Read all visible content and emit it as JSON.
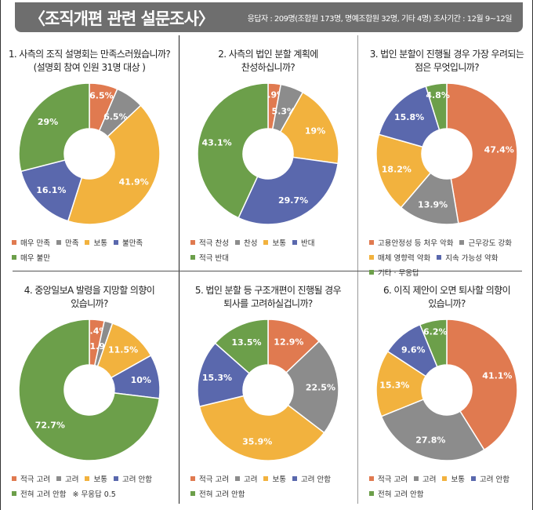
{
  "header": {
    "title": "〈조직개편 관련 설문조사〉",
    "info": "응답자 : 209명(조합원 173명, 명예조합원 32명, 기타 4명)   조사기간 : 12월 9~12일"
  },
  "colors": [
    "#e07a50",
    "#8c8c8c",
    "#f2b23e",
    "#5a68ad",
    "#6c9f4a"
  ],
  "chart_data": [
    {
      "type": "pie",
      "title": [
        "1. 사측의 조직 설명회는 만족스러웠습니까?",
        "(설명회 참여 인원 31명 대상 )"
      ],
      "categories": [
        "매우 만족",
        "만족",
        "보통",
        "불만족",
        "매우 불만"
      ],
      "values": [
        6.5,
        6.5,
        41.9,
        16.1,
        29
      ],
      "labels": [
        "6.5%",
        "6.5%",
        "41.9%",
        "16.1%",
        "29%"
      ]
    },
    {
      "type": "pie",
      "title": [
        "2. 사측의 법인 분할 계획에",
        "찬성하십니까?"
      ],
      "categories": [
        "적극 찬성",
        "찬성",
        "보통",
        "반대",
        "적극 반대"
      ],
      "values": [
        2.9,
        5.3,
        19,
        29.7,
        43.1
      ],
      "labels": [
        "2.9%",
        "5.3%",
        "19%",
        "29.7%",
        "43.1%"
      ]
    },
    {
      "type": "pie",
      "title": [
        "3. 법인 분할이 진행될 경우 가장 우려되는",
        "점은 무엇입니까?"
      ],
      "categories": [
        "고용안정성 등 처우 악화",
        "근무강도 강화",
        "매체 영향력 약화",
        "지속 가능성 약화",
        "기타 · 무응답"
      ],
      "values": [
        47.4,
        13.9,
        18.2,
        15.8,
        4.8
      ],
      "labels": [
        "47.4%",
        "13.9%",
        "18.2%",
        "15.8%",
        "4.8%"
      ]
    },
    {
      "type": "pie",
      "title": [
        "4. 중앙일보A 발령을 지망할 의향이",
        "있습니까?"
      ],
      "categories": [
        "적극 고려",
        "고려",
        "보통",
        "고려 안함",
        "전혀 고려 안함"
      ],
      "values": [
        3.4,
        1.9,
        11.5,
        10,
        72.7
      ],
      "labels": [
        "3.4%",
        "1.9%",
        "11.5%",
        "10%",
        "72.7%"
      ],
      "note": "※ 무응답 0.5"
    },
    {
      "type": "pie",
      "title": [
        "5. 법인 분할 등 구조개편이 진행될 경우",
        "퇴사를 고려하실겁니까?"
      ],
      "categories": [
        "적극 고려",
        "고려",
        "보통",
        "고려 안함",
        "전혀 고려 안함"
      ],
      "values": [
        12.9,
        22.5,
        35.9,
        15.3,
        13.5
      ],
      "labels": [
        "12.9%",
        "22.5%",
        "35.9%",
        "15.3%",
        "13.5%"
      ]
    },
    {
      "type": "pie",
      "title": [
        "6. 이직 제안이 오면 퇴사할 의향이",
        "있습니까?"
      ],
      "categories": [
        "적극 고려",
        "고려",
        "보통",
        "고려 안함",
        "전혀 고려 안함"
      ],
      "values": [
        41.1,
        27.8,
        15.3,
        9.6,
        6.2
      ],
      "labels": [
        "41.1%",
        "27.8%",
        "15.3%",
        "9.6%",
        "6.2%"
      ]
    }
  ]
}
